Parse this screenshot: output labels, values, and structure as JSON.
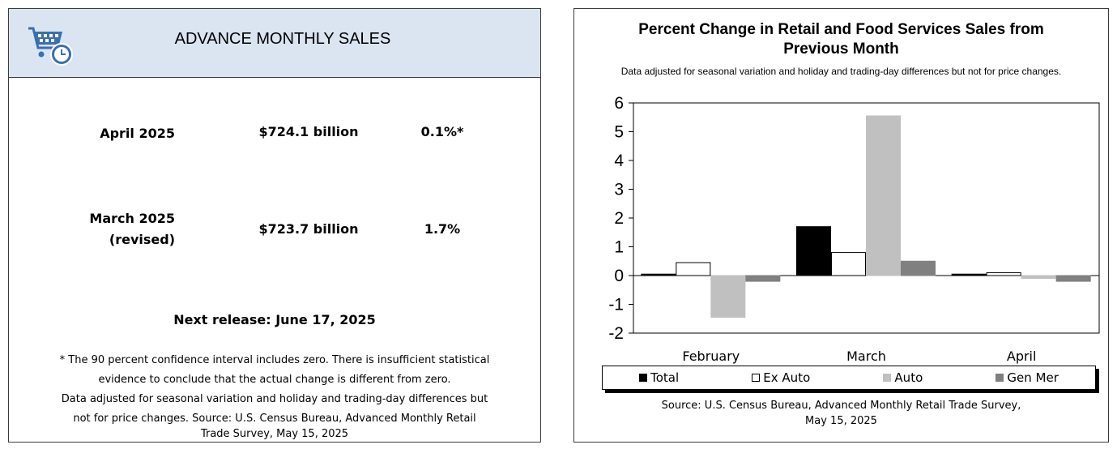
{
  "left": {
    "title": "ADVANCE MONTHLY SALES",
    "rows": [
      {
        "label": "April 2025",
        "amount": "$724.1 billion",
        "change": "0.1%*"
      },
      {
        "label": "March 2025",
        "label2": "(revised)",
        "amount": "$723.7 billion",
        "change": "1.7%"
      }
    ],
    "next_release": "Next release: June 17, 2025",
    "notes": [
      "* The 90 percent confidence interval includes zero. There is insufficient statistical",
      "evidence to conclude that the actual change is different from zero.",
      "Data adjusted for seasonal variation and holiday and trading-day differences but",
      "not for price changes. Source: U.S. Census Bureau, Advanced Monthly Retail",
      "Trade Survey, May 15, 2025"
    ],
    "colors": {
      "header_bg": "#dbe5f1",
      "icon_blue": "#3a6fb0"
    }
  },
  "chart_data": {
    "type": "bar",
    "title": "Percent Change in Retail and Food Services Sales from Previous Month",
    "subtitle": "Data adjusted for seasonal variation and holiday and trading-day differences but not for price changes.",
    "categories": [
      "February",
      "March",
      "April"
    ],
    "series": [
      {
        "name": "Total",
        "values": [
          0.05,
          1.7,
          0.05
        ],
        "color": "#000000",
        "border": "#000000"
      },
      {
        "name": "Ex Auto",
        "values": [
          0.45,
          0.8,
          0.1
        ],
        "color": "#ffffff",
        "border": "#000000"
      },
      {
        "name": "Auto",
        "values": [
          -1.45,
          5.55,
          -0.1
        ],
        "color": "#c0c0c0",
        "border": "#c0c0c0"
      },
      {
        "name": "Gen Mer",
        "values": [
          -0.2,
          0.5,
          -0.2
        ],
        "color": "#808080",
        "border": "#808080"
      }
    ],
    "ylim": [
      -2,
      6
    ],
    "yticks": [
      "6",
      "5",
      "4",
      "3",
      "2",
      "1",
      "0",
      "-1",
      "-2"
    ],
    "legend_position": "bottom",
    "source": [
      "Source: U.S. Census Bureau, Advanced Monthly Retail Trade Survey,",
      "May 15, 2025"
    ]
  }
}
